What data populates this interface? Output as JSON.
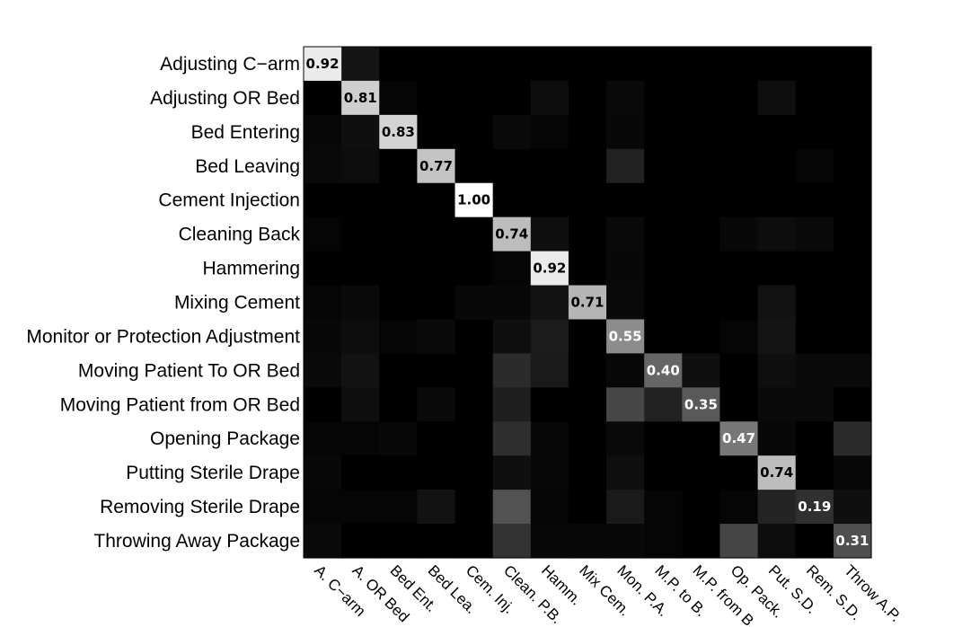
{
  "chart_data": {
    "type": "heatmap",
    "title": "",
    "xlabel": "",
    "ylabel": "",
    "colormap": "gray",
    "value_range": [
      0,
      1
    ],
    "grid": false,
    "rows": [
      "Adjusting C−arm",
      "Adjusting OR Bed",
      "Bed Entering",
      "Bed Leaving",
      "Cement Injection",
      "Cleaning Back",
      "Hammering",
      "Mixing Cement",
      "Monitor or Protection Adjustment",
      "Moving Patient To OR Bed",
      "Moving Patient from OR Bed",
      "Opening Package",
      "Putting Sterile Drape",
      "Removing Sterile Drape",
      "Throwing Away Package"
    ],
    "columns": [
      "A. C−arm",
      "A. OR Bed",
      "Bed Ent.",
      "Bed Lea.",
      "Cem. Inj.",
      "Clean. P.B.",
      "Hamm.",
      "Mix Cem.",
      "Mon. P.A.",
      "M.P. to B.",
      "M.P. from B.",
      "Op. Pack.",
      "Put. S.D.",
      "Rem. S.D.",
      "Throw A.P."
    ],
    "values": [
      [
        0.92,
        0.08,
        0,
        0,
        0,
        0,
        0,
        0,
        0,
        0,
        0,
        0,
        0,
        0,
        0
      ],
      [
        0,
        0.81,
        0.02,
        0,
        0,
        0,
        0.05,
        0,
        0.04,
        0,
        0,
        0,
        0.06,
        0,
        0
      ],
      [
        0.03,
        0.06,
        0.83,
        0,
        0,
        0.04,
        0.02,
        0,
        0.03,
        0,
        0,
        0,
        0,
        0,
        0
      ],
      [
        0.04,
        0.05,
        0,
        0.77,
        0,
        0,
        0,
        0,
        0.13,
        0,
        0,
        0,
        0,
        0.02,
        0
      ],
      [
        0,
        0,
        0,
        0,
        1.0,
        0,
        0,
        0,
        0,
        0,
        0,
        0,
        0,
        0,
        0
      ],
      [
        0.02,
        0,
        0,
        0,
        0,
        0.74,
        0.06,
        0,
        0.04,
        0,
        0,
        0.03,
        0.05,
        0.04,
        0
      ],
      [
        0,
        0,
        0,
        0,
        0,
        0.02,
        0.92,
        0,
        0.03,
        0,
        0,
        0,
        0,
        0,
        0
      ],
      [
        0.02,
        0.04,
        0,
        0,
        0.03,
        0.03,
        0.07,
        0.71,
        0.04,
        0,
        0,
        0,
        0.07,
        0,
        0
      ],
      [
        0.03,
        0.05,
        0.02,
        0.04,
        0,
        0.06,
        0.11,
        0,
        0.55,
        0,
        0,
        0.02,
        0.08,
        0,
        0
      ],
      [
        0.04,
        0.07,
        0,
        0,
        0,
        0.17,
        0.1,
        0,
        0.03,
        0.4,
        0.06,
        0,
        0.06,
        0.04,
        0.04
      ],
      [
        0,
        0.06,
        0,
        0.04,
        0,
        0.12,
        0,
        0,
        0.28,
        0.13,
        0.35,
        0,
        0.04,
        0.04,
        0
      ],
      [
        0.02,
        0.02,
        0.03,
        0,
        0,
        0.18,
        0.03,
        0,
        0.04,
        0,
        0,
        0.47,
        0.03,
        0,
        0.17
      ],
      [
        0.03,
        0,
        0,
        0,
        0,
        0.06,
        0.03,
        0,
        0.06,
        0,
        0,
        0,
        0.74,
        0,
        0.03
      ],
      [
        0.02,
        0.02,
        0.02,
        0.07,
        0,
        0.32,
        0.02,
        0,
        0.1,
        0.02,
        0,
        0.02,
        0.14,
        0.19,
        0.06
      ],
      [
        0.04,
        0,
        0,
        0,
        0,
        0.2,
        0.03,
        0.03,
        0.03,
        0.02,
        0,
        0.27,
        0.05,
        0,
        0.31
      ]
    ],
    "cell_labels": [
      "0.92",
      "0.81",
      "0.83",
      "0.77",
      "1.00",
      "0.74",
      "0.92",
      "0.71",
      "0.55",
      "0.40",
      "0.35",
      "0.47",
      "0.74",
      "0.19",
      "0.31"
    ]
  }
}
